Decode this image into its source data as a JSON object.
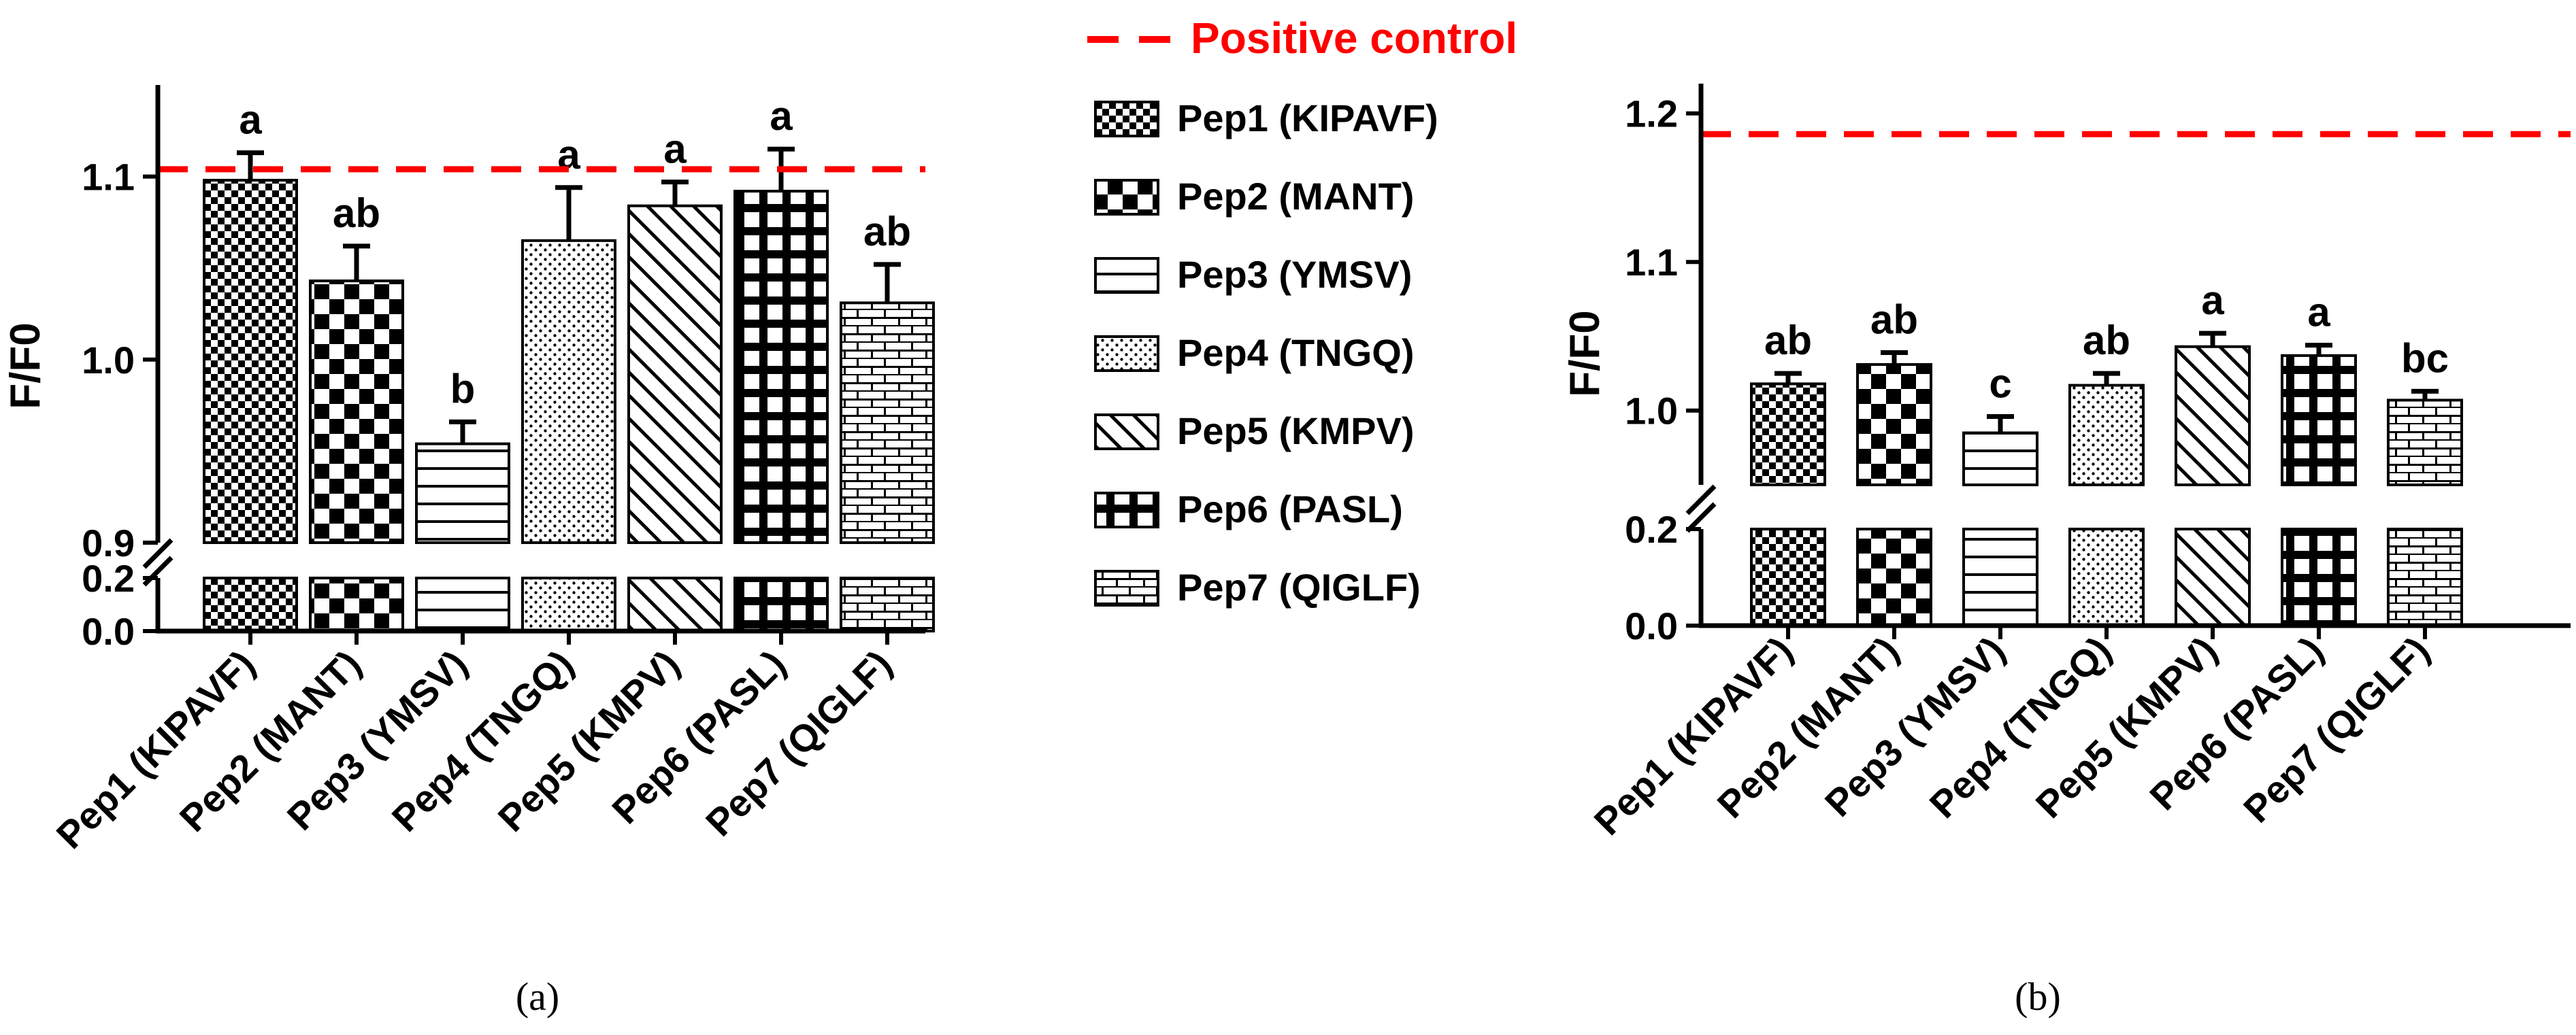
{
  "positive_control_label": "Positive control",
  "colors": {
    "control_line": "#ff0000",
    "ink": "#000000",
    "background": "#ffffff"
  },
  "legend": [
    {
      "label": "Pep1 (KIPAVF)",
      "pattern": "fine-check"
    },
    {
      "label": "Pep2 (MANT)",
      "pattern": "coarse-check"
    },
    {
      "label": "Pep3 (YMSV)",
      "pattern": "horizontal-lines"
    },
    {
      "label": "Pep4 (TNGQ)",
      "pattern": "dots"
    },
    {
      "label": "Pep5 (KMPV)",
      "pattern": "diagonal-lines"
    },
    {
      "label": "Pep6 (PASL)",
      "pattern": "grid"
    },
    {
      "label": "Pep7 (QIGLF)",
      "pattern": "bricks"
    }
  ],
  "chart_data": [
    {
      "type": "bar",
      "panel": "(a)",
      "ylabel": "F/F0",
      "categories": [
        "Pep1 (KIPAVF)",
        "Pep2 (MANT)",
        "Pep3 (YMSV)",
        "Pep4 (TNGQ)",
        "Pep5 (KMPV)",
        "Pep6 (PASL)",
        "Pep7 (QIGLF)"
      ],
      "values": [
        1.098,
        1.043,
        0.954,
        1.065,
        1.084,
        1.092,
        1.031
      ],
      "errors": [
        0.015,
        0.019,
        0.012,
        0.029,
        0.013,
        0.023,
        0.021
      ],
      "significance": [
        "a",
        "ab",
        "b",
        "a",
        "a",
        "a",
        "ab"
      ],
      "positive_control": 1.104,
      "y_axis_break": {
        "lower": [
          0.0,
          0.2
        ],
        "upper": [
          0.9,
          1.15
        ]
      },
      "yticks_lower": [
        "0.0",
        "0.2"
      ],
      "yticks_upper": [
        "0.9",
        "1.0",
        "1.1"
      ]
    },
    {
      "type": "bar",
      "panel": "(b)",
      "ylabel": "F/F0",
      "categories": [
        "Pep1 (KIPAVF)",
        "Pep2 (MANT)",
        "Pep3 (YMSV)",
        "Pep4 (TNGQ)",
        "Pep5 (KMPV)",
        "Pep6 (PASL)",
        "Pep7 (QIGLF)"
      ],
      "values": [
        1.018,
        1.031,
        0.985,
        1.017,
        1.043,
        1.037,
        1.007
      ],
      "errors": [
        0.007,
        0.008,
        0.011,
        0.008,
        0.009,
        0.007,
        0.006
      ],
      "significance": [
        "ab",
        "ab",
        "c",
        "ab",
        "a",
        "a",
        "bc"
      ],
      "positive_control": 1.186,
      "y_axis_break": {
        "lower": [
          0.0,
          0.2
        ],
        "upper": [
          0.95,
          1.22
        ]
      },
      "yticks_lower": [
        "0.0",
        "0.2"
      ],
      "yticks_upper": [
        "1.0",
        "1.1",
        "1.2"
      ]
    }
  ]
}
